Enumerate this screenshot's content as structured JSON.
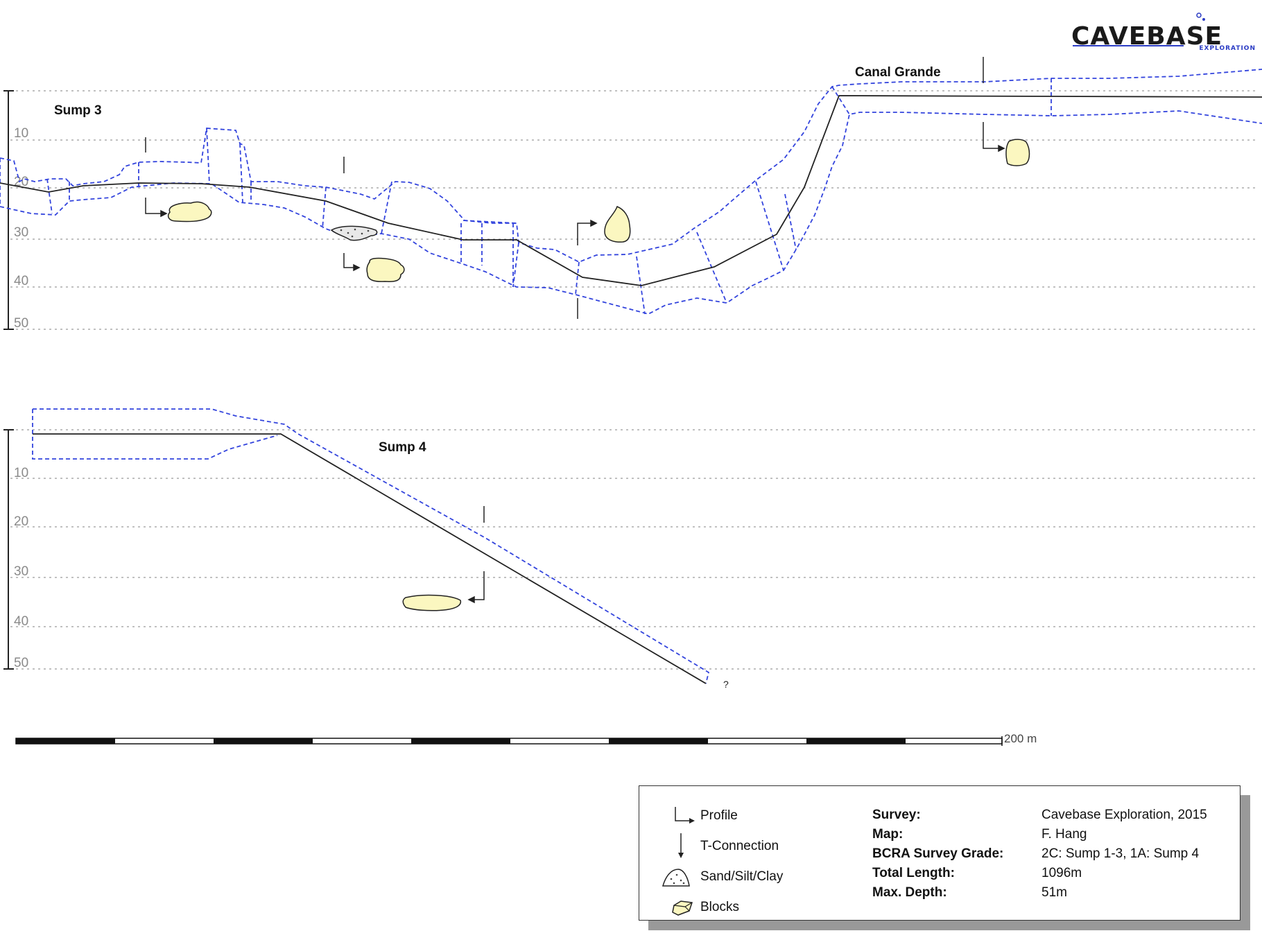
{
  "logo": {
    "name": "CAVEBASE",
    "tagline": "EXPLORATION"
  },
  "sections": [
    {
      "label": "Sump 3"
    },
    {
      "label": "Canal Grande"
    },
    {
      "label": "Sump 4"
    }
  ],
  "depth_ticks": [
    "10",
    "20",
    "30",
    "40",
    "50"
  ],
  "unknown_mark": "?",
  "scale_bar": {
    "label": "200  m"
  },
  "legend": {
    "items": [
      {
        "label": "Profile",
        "icon": "profile-icon"
      },
      {
        "label": "T-Connection",
        "icon": "t-connection-icon"
      },
      {
        "label": "Sand/Silt/Clay",
        "icon": "sand-silt-clay-icon"
      },
      {
        "label": "Blocks",
        "icon": "blocks-icon"
      }
    ],
    "info": [
      {
        "key": "Survey:",
        "value": "Cavebase Exploration, 2015"
      },
      {
        "key": "Map:",
        "value": "F. Hang"
      },
      {
        "key": "BCRA Survey Grade:",
        "value": "2C: Sump 1-3, 1A: Sump 4"
      },
      {
        "key": "Total Length:",
        "value": "1096m"
      },
      {
        "key": "Max. Depth:",
        "value": "51m"
      }
    ]
  },
  "colors": {
    "passage_outline": "#3344dd",
    "centerline": "#222222",
    "block_fill": "#fbf7c0",
    "depth_grid": "#9a9a9a"
  }
}
